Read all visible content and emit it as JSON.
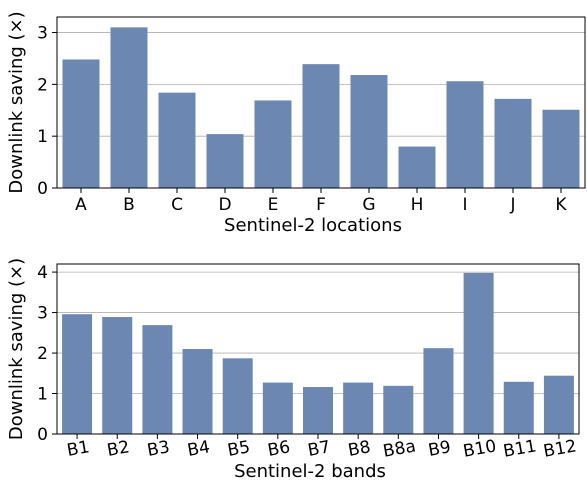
{
  "chart_data": [
    {
      "type": "bar",
      "categories": [
        "A",
        "B",
        "C",
        "D",
        "E",
        "F",
        "G",
        "H",
        "I",
        "J",
        "K"
      ],
      "values": [
        2.48,
        3.1,
        1.84,
        1.04,
        1.69,
        2.39,
        2.18,
        0.8,
        2.06,
        1.72,
        1.51
      ],
      "xlabel": "Sentinel-2 locations",
      "ylabel": "Downlink saving (×)",
      "ylim": [
        0,
        3.3
      ],
      "yticks": [
        0,
        1,
        2,
        3
      ],
      "grid": "horizontal",
      "bar_color": "#6d87b3",
      "rotate_x_labels": false
    },
    {
      "type": "bar",
      "categories": [
        "B1",
        "B2",
        "B3",
        "B4",
        "B5",
        "B6",
        "B7",
        "B8",
        "B8a",
        "B9",
        "B10",
        "B11",
        "B12"
      ],
      "values": [
        2.96,
        2.89,
        2.69,
        2.1,
        1.87,
        1.27,
        1.16,
        1.27,
        1.19,
        2.12,
        3.98,
        1.29,
        1.44
      ],
      "xlabel": "Sentinel-2 bands",
      "ylabel": "Downlink saving (×)",
      "ylim": [
        0,
        4.2
      ],
      "yticks": [
        0,
        1,
        2,
        3,
        4
      ],
      "grid": "horizontal",
      "bar_color": "#6d87b3",
      "rotate_x_labels": true
    }
  ]
}
